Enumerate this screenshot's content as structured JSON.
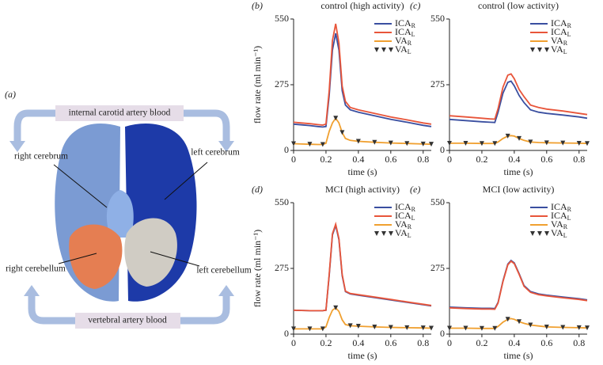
{
  "panel_a": {
    "label": "(a)",
    "top_box": "internal carotid artery blood",
    "bottom_box": "vertebral artery blood",
    "regions": [
      "right cerebrum",
      "left cerebrum",
      "right cerebellum",
      "left cerebellum"
    ]
  },
  "chart_data": [
    {
      "type": "line",
      "panel": "(b)",
      "title": "control (high activity)",
      "y_label": "flow rate (ml min⁻¹)",
      "x_label": "time (s)",
      "x": [
        0,
        0.05,
        0.1,
        0.15,
        0.18,
        0.2,
        0.22,
        0.24,
        0.26,
        0.28,
        0.3,
        0.32,
        0.35,
        0.4,
        0.5,
        0.6,
        0.7,
        0.8,
        0.85
      ],
      "xlim": [
        0,
        0.85
      ],
      "xticks": [
        0,
        0.2,
        0.4,
        0.6,
        0.8
      ],
      "ylim": [
        0,
        550
      ],
      "yticks": [
        0,
        275,
        550
      ],
      "series": [
        {
          "name": "ICA_R",
          "color": "#3a4fa0",
          "values": [
            110,
            107,
            104,
            100,
            98,
            100,
            230,
            420,
            490,
            420,
            250,
            190,
            170,
            160,
            145,
            130,
            118,
            105,
            100
          ]
        },
        {
          "name": "ICA_L",
          "color": "#e8553a",
          "values": [
            118,
            115,
            112,
            108,
            106,
            110,
            250,
            460,
            530,
            450,
            270,
            205,
            180,
            170,
            155,
            140,
            128,
            115,
            110
          ]
        },
        {
          "name": "VA_R",
          "color": "#f0a030",
          "values": [
            28,
            27,
            26,
            25,
            25,
            30,
            80,
            115,
            135,
            115,
            75,
            50,
            42,
            38,
            34,
            31,
            29,
            27,
            26
          ]
        },
        {
          "name": "VA_L",
          "color": "#333333",
          "marker": "triangle",
          "values": [
            28,
            null,
            26,
            null,
            25,
            null,
            null,
            null,
            135,
            null,
            75,
            null,
            null,
            38,
            34,
            31,
            29,
            27,
            26
          ]
        }
      ]
    },
    {
      "type": "line",
      "panel": "(c)",
      "title": "control (low activity)",
      "x_label": "time (s)",
      "x": [
        0,
        0.1,
        0.2,
        0.25,
        0.28,
        0.3,
        0.33,
        0.36,
        0.38,
        0.4,
        0.43,
        0.46,
        0.5,
        0.55,
        0.6,
        0.7,
        0.8,
        0.85
      ],
      "xlim": [
        0,
        0.85
      ],
      "xticks": [
        0,
        0.2,
        0.4,
        0.6,
        0.8
      ],
      "ylim": [
        0,
        550
      ],
      "yticks": [
        0,
        275,
        550
      ],
      "series": [
        {
          "name": "ICA_R",
          "color": "#3a4fa0",
          "values": [
            130,
            125,
            120,
            118,
            117,
            160,
            240,
            285,
            290,
            270,
            230,
            200,
            170,
            160,
            155,
            148,
            140,
            135
          ]
        },
        {
          "name": "ICA_L",
          "color": "#e8553a",
          "values": [
            145,
            140,
            135,
            132,
            131,
            175,
            265,
            315,
            320,
            300,
            255,
            225,
            190,
            180,
            173,
            165,
            155,
            150
          ]
        },
        {
          "name": "VA_R",
          "color": "#f0a030",
          "values": [
            30,
            30,
            29,
            29,
            29,
            35,
            50,
            60,
            62,
            60,
            50,
            42,
            35,
            33,
            32,
            31,
            30,
            29
          ]
        },
        {
          "name": "VA_L",
          "color": "#333333",
          "marker": "triangle",
          "values": [
            30,
            30,
            29,
            null,
            29,
            null,
            null,
            60,
            null,
            null,
            50,
            null,
            35,
            null,
            32,
            31,
            30,
            29
          ]
        }
      ]
    },
    {
      "type": "line",
      "panel": "(d)",
      "title": "MCI (high activity)",
      "y_label": "flow rate (ml min⁻¹)",
      "x_label": "time (s)",
      "x": [
        0,
        0.05,
        0.1,
        0.15,
        0.18,
        0.2,
        0.22,
        0.24,
        0.26,
        0.28,
        0.3,
        0.32,
        0.35,
        0.4,
        0.5,
        0.6,
        0.7,
        0.8,
        0.85
      ],
      "xlim": [
        0,
        0.85
      ],
      "xticks": [
        0,
        0.2,
        0.4,
        0.6,
        0.8
      ],
      "ylim": [
        0,
        550
      ],
      "yticks": [
        0,
        275,
        550
      ],
      "series": [
        {
          "name": "ICA_R",
          "color": "#3a4fa0",
          "values": [
            100,
            99,
            98,
            98,
            98,
            100,
            245,
            415,
            455,
            395,
            245,
            178,
            168,
            163,
            153,
            143,
            133,
            123,
            118
          ]
        },
        {
          "name": "ICA_L",
          "color": "#e8553a",
          "values": [
            100,
            99,
            98,
            98,
            98,
            100,
            250,
            420,
            460,
            400,
            250,
            180,
            170,
            165,
            155,
            145,
            135,
            125,
            120
          ]
        },
        {
          "name": "VA_R",
          "color": "#f0a030",
          "values": [
            22,
            22,
            22,
            22,
            22,
            30,
            70,
            100,
            110,
            95,
            60,
            40,
            35,
            33,
            30,
            28,
            27,
            26,
            25
          ]
        },
        {
          "name": "VA_L",
          "color": "#333333",
          "marker": "triangle",
          "values": [
            22,
            null,
            22,
            null,
            22,
            null,
            null,
            null,
            110,
            null,
            null,
            null,
            35,
            33,
            30,
            28,
            27,
            26,
            25
          ]
        }
      ]
    },
    {
      "type": "line",
      "panel": "(e)",
      "title": "MCI (low activity)",
      "x_label": "time (s)",
      "x": [
        0,
        0.1,
        0.2,
        0.25,
        0.28,
        0.3,
        0.33,
        0.36,
        0.38,
        0.4,
        0.43,
        0.46,
        0.5,
        0.55,
        0.6,
        0.7,
        0.8,
        0.85
      ],
      "xlim": [
        0,
        0.85
      ],
      "xticks": [
        0,
        0.2,
        0.4,
        0.6,
        0.8
      ],
      "ylim": [
        0,
        550
      ],
      "yticks": [
        0,
        275,
        550
      ],
      "series": [
        {
          "name": "ICA_R",
          "color": "#3a4fa0",
          "values": [
            113,
            110,
            108,
            108,
            107,
            133,
            223,
            293,
            308,
            298,
            253,
            203,
            178,
            168,
            163,
            155,
            148,
            143
          ]
        },
        {
          "name": "ICA_L",
          "color": "#e8553a",
          "values": [
            110,
            107,
            105,
            105,
            104,
            130,
            220,
            290,
            305,
            295,
            250,
            200,
            175,
            165,
            160,
            152,
            145,
            140
          ]
        },
        {
          "name": "VA_R",
          "color": "#f0a030",
          "values": [
            25,
            25,
            24,
            24,
            24,
            32,
            50,
            62,
            65,
            62,
            52,
            45,
            38,
            34,
            30,
            28,
            27,
            26
          ]
        },
        {
          "name": "VA_L",
          "color": "#333333",
          "marker": "triangle",
          "values": [
            25,
            25,
            24,
            null,
            24,
            null,
            null,
            62,
            null,
            null,
            52,
            null,
            38,
            null,
            30,
            28,
            27,
            26
          ]
        }
      ]
    }
  ]
}
